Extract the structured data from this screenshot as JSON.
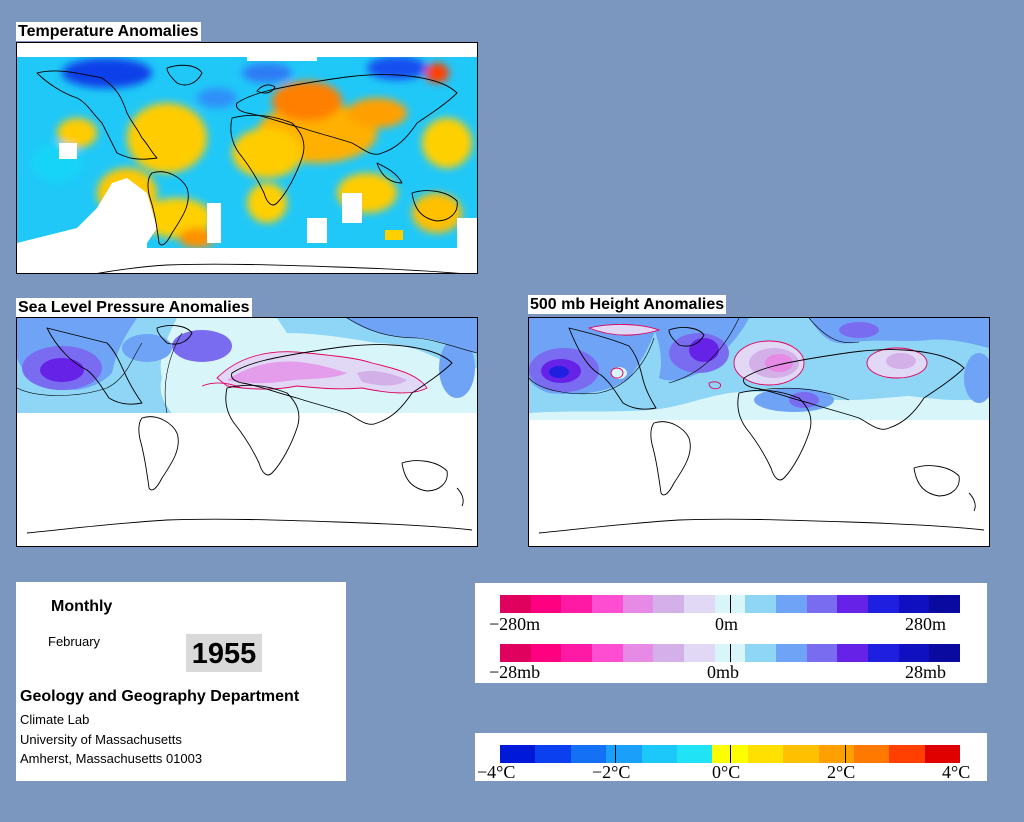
{
  "panels": {
    "temperature": {
      "title": "Temperature Anomalies"
    },
    "slp": {
      "title": "Sea Level Pressure Anomalies"
    },
    "height": {
      "title": "500 mb Height Anomalies"
    }
  },
  "info": {
    "period": "Monthly",
    "month": "February",
    "year": "1955",
    "department": "Geology and Geography Department",
    "lab": "Climate Lab",
    "university": "University of Massachusetts",
    "address": "Amherst, Massachusetts 01003"
  },
  "legend_height": {
    "labels": [
      "−280m",
      "0m",
      "280m"
    ],
    "colors": [
      "#e0005e",
      "#ff0080",
      "#ff1aa6",
      "#ff4dd1",
      "#e68ae6",
      "#d4b0e8",
      "#e0d8f5",
      "#d8f6fa",
      "#8fd5f5",
      "#6fa3f5",
      "#7a6cf0",
      "#6622e6",
      "#1f1fe0",
      "#1010c0",
      "#0a0aa0"
    ]
  },
  "legend_pressure": {
    "labels": [
      "−28mb",
      "0mb",
      "28mb"
    ],
    "colors": [
      "#e0005e",
      "#ff0080",
      "#ff1aa6",
      "#ff4dd1",
      "#e68ae6",
      "#d4b0e8",
      "#e0d8f5",
      "#d8f6fa",
      "#8fd5f5",
      "#6fa3f5",
      "#7a6cf0",
      "#6622e6",
      "#1f1fe0",
      "#1010c0",
      "#0a0aa0"
    ]
  },
  "legend_temperature": {
    "labels": [
      "−4°C",
      "−2°C",
      "0°C",
      "2°C",
      "4°C"
    ],
    "colors": [
      "#0018d8",
      "#0a40f0",
      "#1470f5",
      "#1aa0fa",
      "#1cc8fa",
      "#20e4f5",
      "#ffff00",
      "#ffe000",
      "#ffc000",
      "#ffa000",
      "#ff7800",
      "#ff4000",
      "#e00000"
    ]
  }
}
